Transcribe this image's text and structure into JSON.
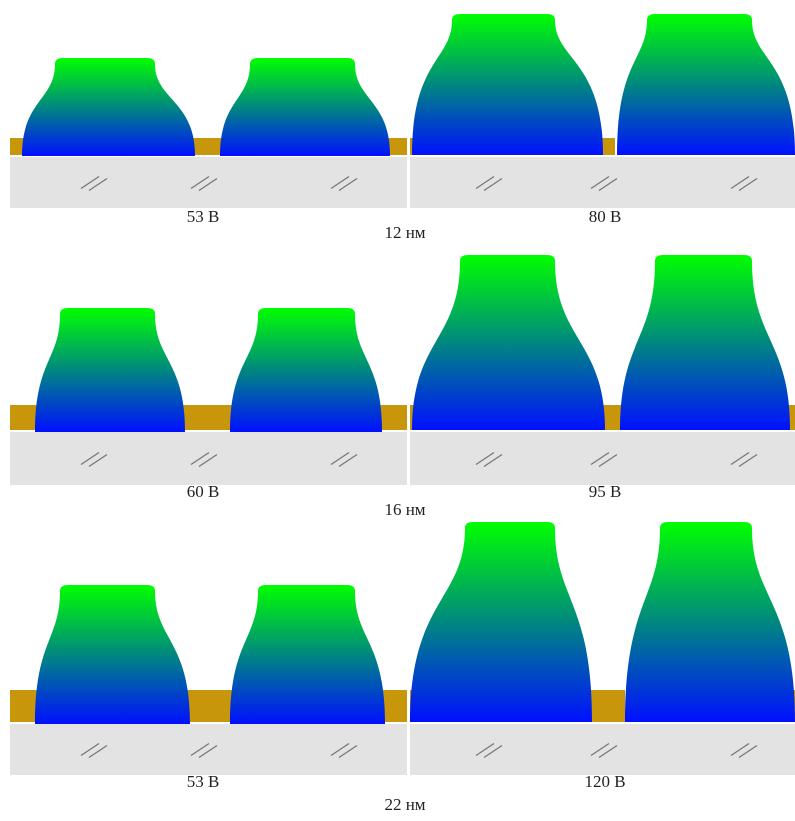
{
  "rows": [
    {
      "left_label": "53 В",
      "right_label": "80 В",
      "spacing": "12 нм"
    },
    {
      "left_label": "60 В",
      "right_label": "95 В",
      "spacing": "16 нм"
    },
    {
      "left_label": "53 В",
      "right_label": "120 В",
      "spacing": "22 нм"
    }
  ]
}
